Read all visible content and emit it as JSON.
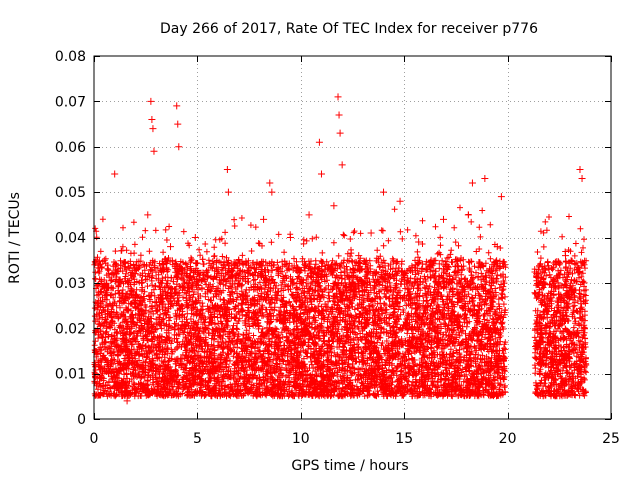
{
  "chart_data": {
    "type": "scatter",
    "title": "Day 266 of 2017, Rate Of TEC Index for receiver p776",
    "xlabel": "GPS time / hours",
    "ylabel": "ROTI / TECUs",
    "xlim": [
      0,
      25
    ],
    "ylim": [
      0,
      0.08
    ],
    "x_ticks": [
      0,
      5,
      10,
      15,
      20,
      25
    ],
    "x_tick_labels": [
      "0",
      "5",
      "10",
      "15",
      "20",
      "25"
    ],
    "y_ticks": [
      0,
      0.01,
      0.02,
      0.03,
      0.04,
      0.05,
      0.06,
      0.07,
      0.08
    ],
    "y_tick_labels": [
      "0",
      "0.01",
      "0.02",
      "0.03",
      "0.04",
      "0.05",
      "0.06",
      "0.07",
      "0.08"
    ],
    "grid": true,
    "marker": "+",
    "marker_color": "#ff0000",
    "data_gaps_hours": [
      [
        19.9,
        21.3
      ]
    ],
    "series": [
      {
        "name": "ROTI p776",
        "x": [
          0.05,
          0.15,
          0.3,
          0.4,
          0.5,
          0.7,
          0.9,
          1.0,
          1.2,
          1.4,
          1.6,
          1.8,
          2.0,
          2.2,
          2.4,
          2.6,
          2.75,
          2.8,
          2.85,
          2.9,
          3.1,
          3.3,
          3.5,
          3.7,
          3.9,
          4.0,
          4.05,
          4.1,
          4.3,
          4.5,
          4.7,
          4.9,
          5.2,
          5.5,
          5.8,
          6.0,
          6.3,
          6.45,
          6.5,
          6.7,
          7.0,
          7.3,
          7.6,
          7.9,
          8.2,
          8.5,
          8.6,
          8.9,
          9.2,
          9.5,
          9.8,
          10.1,
          10.4,
          10.7,
          10.9,
          11.0,
          11.3,
          11.6,
          11.8,
          11.85,
          11.9,
          12.0,
          12.2,
          12.5,
          12.8,
          13.1,
          13.4,
          13.7,
          14.0,
          14.2,
          14.5,
          14.8,
          15.1,
          15.4,
          15.7,
          16.0,
          16.3,
          16.6,
          16.9,
          17.2,
          17.5,
          17.8,
          18.1,
          18.3,
          18.6,
          18.9,
          19.2,
          19.5,
          19.7,
          19.8,
          21.4,
          21.6,
          21.8,
          22.0,
          22.2,
          22.4,
          22.6,
          22.8,
          23.0,
          23.2,
          23.4,
          23.5,
          23.6,
          23.7
        ],
        "y": [
          0.012,
          0.022,
          0.028,
          0.018,
          0.035,
          0.01,
          0.025,
          0.054,
          0.03,
          0.015,
          0.004,
          0.02,
          0.032,
          0.016,
          0.027,
          0.045,
          0.07,
          0.066,
          0.064,
          0.059,
          0.022,
          0.034,
          0.018,
          0.038,
          0.026,
          0.069,
          0.065,
          0.06,
          0.012,
          0.03,
          0.019,
          0.04,
          0.016,
          0.028,
          0.01,
          0.033,
          0.024,
          0.055,
          0.05,
          0.017,
          0.035,
          0.013,
          0.029,
          0.021,
          0.044,
          0.052,
          0.05,
          0.018,
          0.031,
          0.04,
          0.015,
          0.026,
          0.045,
          0.02,
          0.061,
          0.054,
          0.012,
          0.047,
          0.071,
          0.067,
          0.063,
          0.056,
          0.028,
          0.014,
          0.036,
          0.022,
          0.041,
          0.009,
          0.05,
          0.032,
          0.017,
          0.048,
          0.025,
          0.013,
          0.039,
          0.021,
          0.035,
          0.011,
          0.044,
          0.028,
          0.018,
          0.033,
          0.045,
          0.052,
          0.024,
          0.053,
          0.016,
          0.038,
          0.049,
          0.013,
          0.032,
          0.012,
          0.02,
          0.033,
          0.008,
          0.026,
          0.015,
          0.036,
          0.019,
          0.024,
          0.011,
          0.055,
          0.053,
          0.03
        ]
      }
    ]
  }
}
